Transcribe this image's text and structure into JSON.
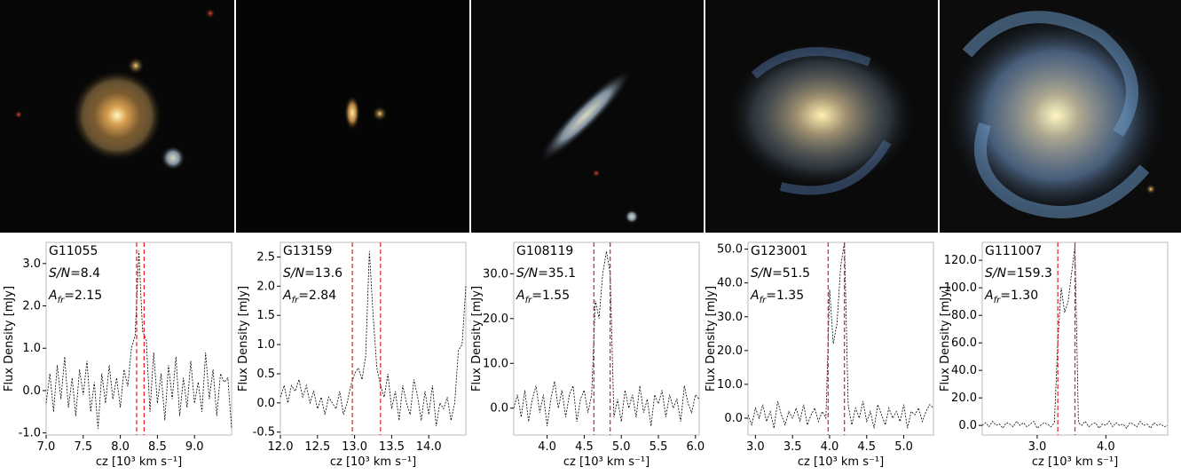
{
  "chart_data": [
    {
      "type": "line",
      "title": "G11055",
      "sn": {
        "symbol": "S/N",
        "text": "=8.4"
      },
      "afr": {
        "symbol": "A",
        "subscript": "fr",
        "text": "=2.15"
      },
      "xlabel": "cz  [10³ km s⁻¹]",
      "ylabel": "Flux Density [mJy]",
      "x": [
        7.0,
        7.05,
        7.1,
        7.15,
        7.2,
        7.25,
        7.3,
        7.35,
        7.4,
        7.45,
        7.5,
        7.55,
        7.6,
        7.65,
        7.7,
        7.75,
        7.8,
        7.85,
        7.9,
        7.95,
        8.0,
        8.05,
        8.1,
        8.15,
        8.2,
        8.25,
        8.3,
        8.35,
        8.4,
        8.45,
        8.5,
        8.55,
        8.6,
        8.65,
        8.7,
        8.75,
        8.8,
        8.85,
        8.9,
        8.95,
        9.0,
        9.05,
        9.1,
        9.15,
        9.2,
        9.25,
        9.3,
        9.35,
        9.4,
        9.45,
        9.5
      ],
      "values": [
        -0.3,
        0.4,
        -0.5,
        0.6,
        -0.2,
        0.8,
        -0.4,
        0.3,
        -0.6,
        0.5,
        -0.1,
        0.7,
        -0.5,
        0.2,
        -0.9,
        0.4,
        -0.3,
        0.6,
        -0.2,
        0.3,
        -0.4,
        0.5,
        0.1,
        1.0,
        1.3,
        3.3,
        1.4,
        1.2,
        -0.5,
        0.9,
        -0.3,
        0.4,
        -0.7,
        0.6,
        -0.2,
        0.8,
        -0.6,
        0.3,
        -0.4,
        0.7,
        -0.3,
        0.2,
        -0.5,
        0.9,
        -0.2,
        0.5,
        -0.6,
        0.4,
        0.2,
        0.3,
        -0.9
      ],
      "xlim": [
        7.0,
        9.5
      ],
      "ylim": [
        -1.05,
        3.5
      ],
      "xticks": [
        {
          "value": 7.0,
          "label": "7.0"
        },
        {
          "value": 7.5,
          "label": "7.5"
        },
        {
          "value": 8.0,
          "label": "8.0"
        },
        {
          "value": 8.5,
          "label": "8.5"
        },
        {
          "value": 9.0,
          "label": "9.0"
        }
      ],
      "yticks": [
        {
          "value": -1,
          "label": "-1.0"
        },
        {
          "value": 0,
          "label": "0.0"
        },
        {
          "value": 1,
          "label": "1.0"
        },
        {
          "value": 2,
          "label": "2.0"
        },
        {
          "value": 3,
          "label": "3.0"
        }
      ],
      "vlines": [
        8.22,
        8.32
      ],
      "line_color": "#000000",
      "vline_color": "#e41a1c"
    },
    {
      "type": "line",
      "title": "G13159",
      "sn": {
        "symbol": "S/N",
        "text": "=13.6"
      },
      "afr": {
        "symbol": "A",
        "subscript": "fr",
        "text": "=2.84"
      },
      "xlabel": "cz  [10³ km s⁻¹]",
      "ylabel": "Flux Density [mJy]",
      "x": [
        12.0,
        12.05,
        12.1,
        12.15,
        12.2,
        12.25,
        12.3,
        12.35,
        12.4,
        12.45,
        12.5,
        12.55,
        12.6,
        12.65,
        12.7,
        12.75,
        12.8,
        12.85,
        12.9,
        12.95,
        13.0,
        13.05,
        13.1,
        13.15,
        13.2,
        13.25,
        13.3,
        13.35,
        13.4,
        13.45,
        13.5,
        13.55,
        13.6,
        13.65,
        13.7,
        13.75,
        13.8,
        13.85,
        13.9,
        13.95,
        14.0,
        14.05,
        14.1,
        14.15,
        14.2,
        14.25,
        14.3,
        14.35,
        14.4,
        14.45,
        14.5
      ],
      "values": [
        0.1,
        0.3,
        0.0,
        0.3,
        0.2,
        0.4,
        0.1,
        0.3,
        0.0,
        0.2,
        -0.1,
        0.1,
        -0.2,
        0.1,
        0.0,
        -0.1,
        0.2,
        -0.2,
        0.0,
        0.3,
        0.5,
        0.6,
        0.4,
        0.8,
        2.6,
        1.5,
        0.6,
        0.3,
        0.1,
        0.5,
        -0.1,
        0.2,
        -0.3,
        0.3,
        0.0,
        -0.2,
        0.4,
        0.1,
        -0.3,
        0.2,
        -0.2,
        0.3,
        -0.4,
        0.0,
        -0.1,
        0.1,
        -0.3,
        0.0,
        0.9,
        1.0,
        2.0
      ],
      "xlim": [
        12.0,
        14.5
      ],
      "ylim": [
        -0.55,
        2.75
      ],
      "xticks": [
        {
          "value": 12.0,
          "label": "12.0"
        },
        {
          "value": 12.5,
          "label": "12.5"
        },
        {
          "value": 13.0,
          "label": "13.0"
        },
        {
          "value": 13.5,
          "label": "13.5"
        },
        {
          "value": 14.0,
          "label": "14.0"
        }
      ],
      "yticks": [
        -0.5,
        {
          "value": 0,
          "label": "0.0"
        },
        0.5,
        {
          "value": 1,
          "label": "1.0"
        },
        1.5,
        {
          "value": 2,
          "label": "2.0"
        },
        2.5
      ],
      "vlines": [
        12.97,
        13.35
      ],
      "line_color": "#000000",
      "vline_color": "#e41a1c"
    },
    {
      "type": "line",
      "title": "G108119",
      "sn": {
        "symbol": "S/N",
        "text": "=35.1"
      },
      "afr": {
        "symbol": "A",
        "subscript": "fr",
        "text": "=1.55"
      },
      "xlabel": "cz  [10³ km s⁻¹]",
      "ylabel": "Flux Density [mJy]",
      "x": [
        3.55,
        3.6,
        3.65,
        3.7,
        3.75,
        3.8,
        3.85,
        3.9,
        3.95,
        4.0,
        4.05,
        4.1,
        4.15,
        4.2,
        4.25,
        4.3,
        4.35,
        4.4,
        4.45,
        4.5,
        4.55,
        4.6,
        4.65,
        4.7,
        4.75,
        4.8,
        4.85,
        4.9,
        4.95,
        5.0,
        5.05,
        5.1,
        5.15,
        5.2,
        5.25,
        5.3,
        5.35,
        5.4,
        5.45,
        5.5,
        5.55,
        5.6,
        5.65,
        5.7,
        5.75,
        5.8,
        5.85,
        5.9,
        5.95,
        6.0,
        6.05
      ],
      "values": [
        0,
        3,
        -2,
        4,
        -3,
        2,
        5,
        -1,
        3,
        -4,
        2,
        6,
        0,
        4,
        -2,
        3,
        5,
        -3,
        2,
        4,
        -1,
        3,
        24,
        20,
        30,
        35,
        30,
        -2,
        2,
        -3,
        4,
        0,
        3,
        -2,
        5,
        -1,
        2,
        -4,
        3,
        1,
        4,
        -2,
        3,
        0,
        2,
        -3,
        5,
        1,
        -1,
        3,
        2
      ],
      "xlim": [
        3.55,
        6.05
      ],
      "ylim": [
        -6,
        37
      ],
      "xticks": [
        {
          "value": 4.0,
          "label": "4.0"
        },
        {
          "value": 4.5,
          "label": "4.5"
        },
        {
          "value": 5.0,
          "label": "5.0"
        },
        {
          "value": 5.5,
          "label": "5.5"
        },
        {
          "value": 6.0,
          "label": "6.0"
        }
      ],
      "yticks": [
        {
          "value": 0,
          "label": "0.0"
        },
        {
          "value": 10,
          "label": "10.0"
        },
        {
          "value": 20,
          "label": "20.0"
        },
        {
          "value": 30,
          "label": "30.0"
        }
      ],
      "vlines": [
        4.63,
        4.85
      ],
      "line_color": "#000000",
      "vline_color": "#e41a1c"
    },
    {
      "type": "line",
      "title": "G123001",
      "sn": {
        "symbol": "S/N",
        "text": "=51.5"
      },
      "afr": {
        "symbol": "A",
        "subscript": "fr",
        "text": "=1.35"
      },
      "xlabel": "cz  [10³ km s⁻¹]",
      "ylabel": "Flux Density [mJy]",
      "x": [
        2.9,
        2.95,
        3.0,
        3.05,
        3.1,
        3.15,
        3.2,
        3.25,
        3.3,
        3.35,
        3.4,
        3.45,
        3.5,
        3.55,
        3.6,
        3.65,
        3.7,
        3.75,
        3.8,
        3.85,
        3.9,
        3.95,
        4.0,
        4.05,
        4.1,
        4.15,
        4.2,
        4.25,
        4.3,
        4.35,
        4.4,
        4.45,
        4.5,
        4.55,
        4.6,
        4.65,
        4.7,
        4.75,
        4.8,
        4.85,
        4.9,
        4.95,
        5.0,
        5.05,
        5.1,
        5.15,
        5.2,
        5.25,
        5.3,
        5.35,
        5.4
      ],
      "values": [
        1,
        -2,
        3,
        0,
        4,
        -1,
        2,
        -3,
        5,
        1,
        -2,
        2,
        0,
        3,
        -1,
        4,
        -2,
        1,
        3,
        -1,
        2,
        0,
        38,
        22,
        28,
        45,
        52,
        4,
        -2,
        3,
        0,
        5,
        -1,
        2,
        -3,
        4,
        1,
        -2,
        3,
        0,
        2,
        -1,
        4,
        -3,
        2,
        1,
        3,
        -1,
        2,
        4,
        3
      ],
      "xlim": [
        2.9,
        5.4
      ],
      "ylim": [
        -5,
        52
      ],
      "xticks": [
        {
          "value": 3.0,
          "label": "3.0"
        },
        3.5,
        {
          "value": 4.0,
          "label": "4.0"
        },
        4.5,
        {
          "value": 5.0,
          "label": "5.0"
        }
      ],
      "yticks": [
        {
          "value": 0,
          "label": "0.0"
        },
        {
          "value": 10,
          "label": "10.0"
        },
        {
          "value": 20,
          "label": "20.0"
        },
        {
          "value": 30,
          "label": "30.0"
        },
        {
          "value": 40,
          "label": "40.0"
        },
        {
          "value": 50,
          "label": "50.0"
        }
      ],
      "vlines": [
        3.98,
        4.2
      ],
      "line_color": "#000000",
      "vline_color": "#e41a1c"
    },
    {
      "type": "line",
      "title": "G111007",
      "sn": {
        "symbol": "S/N",
        "text": "=159.3"
      },
      "afr": {
        "symbol": "A",
        "subscript": "fr",
        "text": "=1.30"
      },
      "xlabel": "cz  [10³ km s⁻¹]",
      "ylabel": "Flux Density [mJy]",
      "x": [
        2.2,
        2.25,
        2.3,
        2.35,
        2.4,
        2.45,
        2.5,
        2.55,
        2.6,
        2.65,
        2.7,
        2.75,
        2.8,
        2.85,
        2.9,
        2.95,
        3.0,
        3.05,
        3.1,
        3.15,
        3.2,
        3.25,
        3.3,
        3.35,
        3.4,
        3.45,
        3.5,
        3.55,
        3.6,
        3.65,
        3.7,
        3.75,
        3.8,
        3.85,
        3.9,
        3.95,
        4.0,
        4.05,
        4.1,
        4.15,
        4.2,
        4.25,
        4.3,
        4.35,
        4.4,
        4.45,
        4.5,
        4.55,
        4.6,
        4.65,
        4.7,
        4.75,
        4.8,
        4.85,
        4.9
      ],
      "values": [
        0,
        2,
        -1,
        3,
        0,
        1,
        -2,
        2,
        1,
        -1,
        3,
        0,
        2,
        -1,
        1,
        3,
        -2,
        0,
        2,
        1,
        -1,
        2,
        60,
        100,
        82,
        90,
        110,
        130,
        2,
        0,
        3,
        -1,
        1,
        2,
        -2,
        1,
        0,
        3,
        -1,
        2,
        0,
        1,
        -2,
        2,
        1,
        -1,
        3,
        0,
        1,
        -2,
        2,
        0,
        1,
        -1,
        0
      ],
      "xlim": [
        2.2,
        4.9
      ],
      "ylim": [
        -7,
        133
      ],
      "xticks": [
        {
          "value": 3.0,
          "label": "3.0"
        },
        {
          "value": 4.0,
          "label": "4.0"
        }
      ],
      "yticks": [
        {
          "value": 0,
          "label": "0.0"
        },
        {
          "value": 20,
          "label": "20.0"
        },
        {
          "value": 40,
          "label": "40.0"
        },
        {
          "value": 60,
          "label": "60.0"
        },
        {
          "value": 80,
          "label": "80.0"
        },
        {
          "value": 100,
          "label": "100.0"
        },
        {
          "value": 120,
          "label": "120.0"
        }
      ],
      "vlines": [
        3.3,
        3.55
      ],
      "line_color": "#000000",
      "vline_color": "#e41a1c"
    }
  ]
}
